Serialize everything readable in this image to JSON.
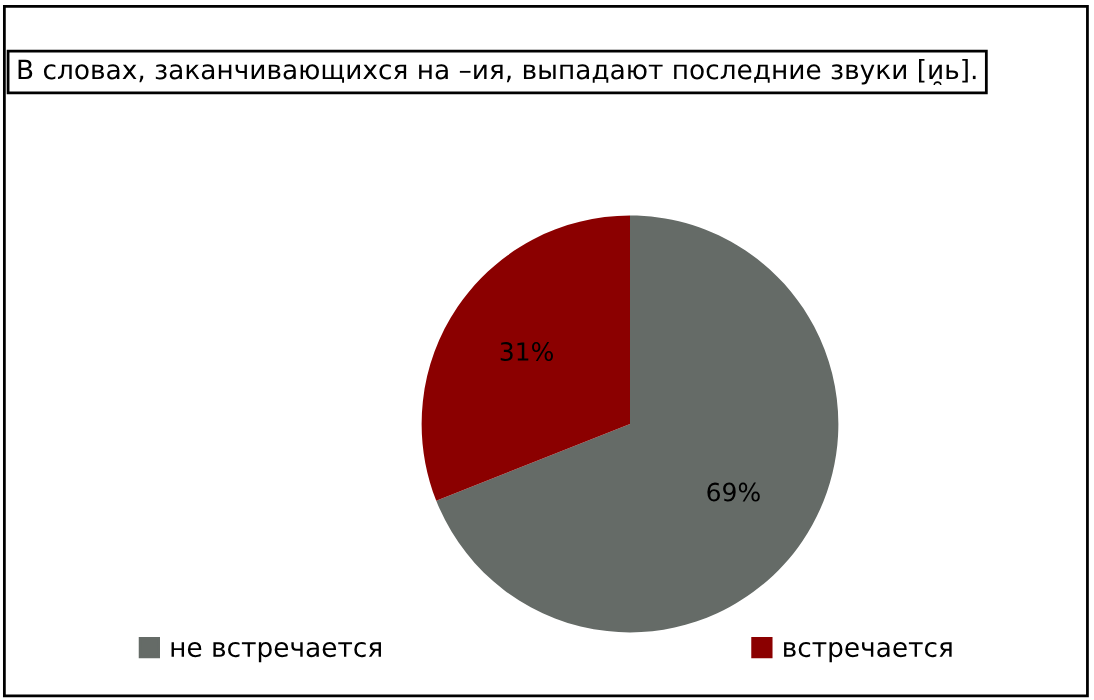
{
  "chart_data": {
    "type": "pie",
    "title": "В словах, заканчивающихся на –ия, выпадают последние звуки [и̯ь].",
    "categories": [
      "не встречается",
      "встречается"
    ],
    "values": [
      69,
      31
    ],
    "colors": [
      "#656b67",
      "#8b0000"
    ],
    "value_labels": [
      "69%",
      "31%"
    ],
    "legend": "bottom"
  }
}
